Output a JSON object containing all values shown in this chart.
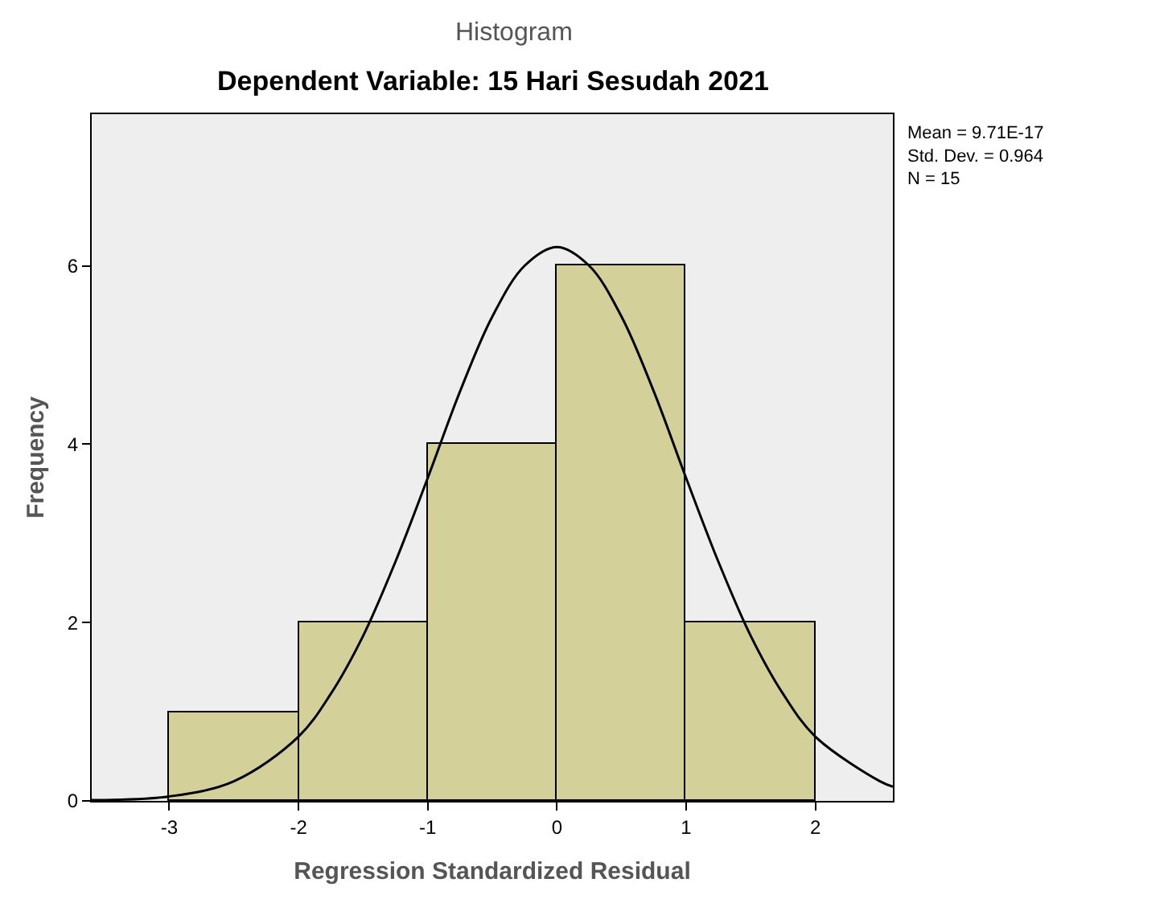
{
  "chart_data": {
    "type": "histogram",
    "title": "Histogram",
    "subtitle": "Dependent Variable: 15 Hari Sesudah 2021",
    "xlabel": "Regression Standardized Residual",
    "ylabel": "Frequency",
    "bins": [
      -3,
      -2,
      -1,
      0,
      1,
      2
    ],
    "values": [
      1,
      2,
      4,
      6,
      2
    ],
    "color": "#d3d09a",
    "series": [
      {
        "type": "line",
        "color": "#000000",
        "x": [
          -3.6,
          -3.5,
          -3,
          -2.5,
          -2,
          -1.75,
          -1.5,
          -1.25,
          -1,
          -0.75,
          -0.5,
          -0.25,
          0,
          0.25,
          0.5,
          0.75,
          1,
          1.25,
          1.5,
          1.75,
          2,
          2.5,
          2.6
        ],
        "values": [
          0.01,
          0.01,
          0.05,
          0.22,
          0.72,
          1.2,
          1.85,
          2.68,
          3.62,
          4.59,
          5.43,
          6.0,
          6.21,
          6.0,
          5.43,
          4.59,
          3.62,
          2.68,
          1.85,
          1.2,
          0.72,
          0.22,
          0.16
        ]
      }
    ],
    "xlim": [
      -3.6,
      2.6
    ],
    "xticks": [
      -3,
      -2,
      -1,
      0,
      1,
      2
    ],
    "ylim": [
      0,
      7.7
    ],
    "yticks": [
      0,
      2,
      4,
      6
    ],
    "annotations": [
      "Mean = 9.71E-17",
      "Std. Dev. = 0.964",
      "N = 15"
    ],
    "grid": false
  }
}
